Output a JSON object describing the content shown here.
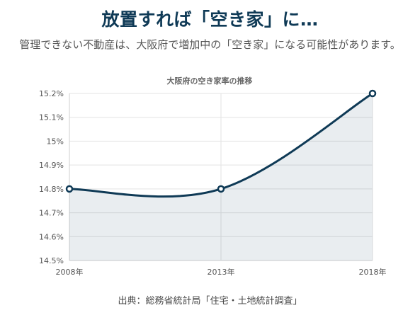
{
  "header": {
    "title": "放置すれば「空き家」に…",
    "subtitle": "管理できない不動産は、大阪府で増加中の「空き家」になる可能性があります。"
  },
  "chart_data": {
    "type": "line",
    "title": "大阪府の空き家率の推移",
    "categories": [
      "2008年",
      "2013年",
      "2018年"
    ],
    "series": [
      {
        "values": [
          14.8,
          14.8,
          15.2
        ]
      }
    ],
    "ylim": [
      14.5,
      15.2
    ],
    "yticks": [
      14.5,
      14.6,
      14.7,
      14.8,
      14.9,
      15,
      15.1,
      15.2
    ],
    "ytick_labels": [
      "14.5%",
      "14.6%",
      "14.7%",
      "14.8%",
      "14.9%",
      "15%",
      "15.1%",
      "15.2%"
    ],
    "grid": true,
    "fill_area": true,
    "colors": {
      "line": "#0f3a56",
      "title": "#0f3a56"
    }
  },
  "footer": {
    "source": "出典：総務省統計局「住宅・土地統計調査」"
  }
}
